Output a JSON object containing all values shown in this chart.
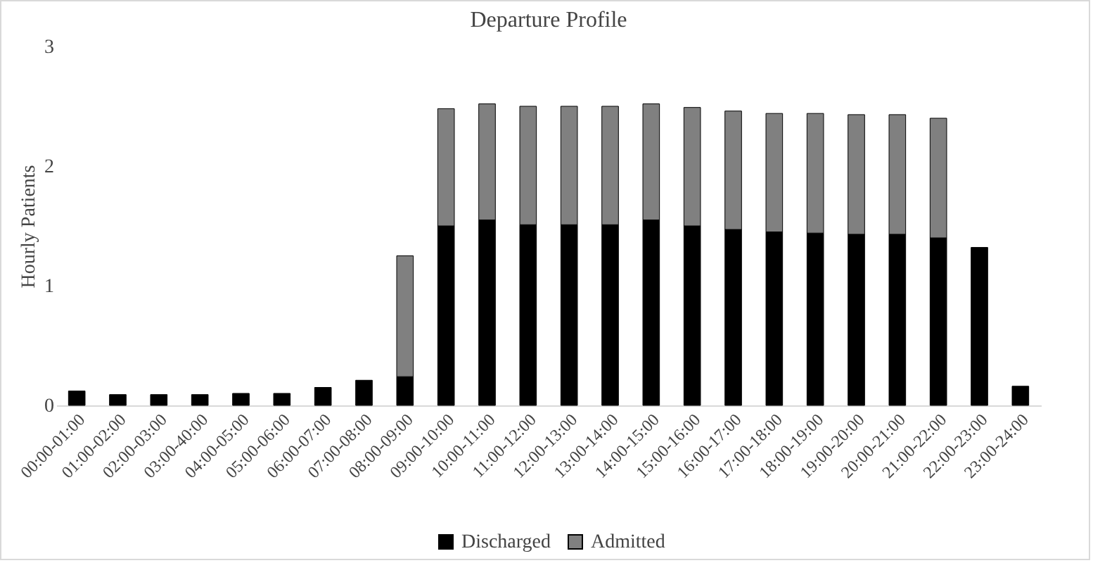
{
  "chart_data": {
    "type": "bar",
    "title": "Departure Profile",
    "ylabel": "Hourly Patients",
    "categories": [
      "00:00-01:00",
      "01:00-02:00",
      "02:00-03:00",
      "03:00-40:00",
      "04:00-05:00",
      "05:00-06:00",
      "06:00-07:00",
      "07:00-08:00",
      "08:00-09:00",
      "09:00-10:00",
      "10:00-11:00",
      "11:00-12:00",
      "12:00-13:00",
      "13:00-14:00",
      "14:00-15:00",
      "15:00-16:00",
      "16:00-17:00",
      "17:00-18:00",
      "18:00-19:00",
      "19:00-20:00",
      "20:00-21:00",
      "21:00-22:00",
      "22:00-23:00",
      "23:00-24:00"
    ],
    "series": [
      {
        "name": "Discharged",
        "color": "#000000",
        "values": [
          0.12,
          0.09,
          0.09,
          0.09,
          0.1,
          0.1,
          0.15,
          0.21,
          0.24,
          1.5,
          1.55,
          1.51,
          1.51,
          1.51,
          1.55,
          1.5,
          1.47,
          1.45,
          1.44,
          1.43,
          1.43,
          1.4,
          1.32,
          0.16
        ]
      },
      {
        "name": "Admitted",
        "color": "#808080",
        "values": [
          null,
          null,
          null,
          null,
          null,
          null,
          null,
          null,
          1.01,
          0.98,
          0.97,
          0.99,
          0.99,
          0.99,
          0.97,
          0.99,
          0.99,
          0.99,
          1.0,
          1.0,
          1.0,
          1.0,
          null,
          null
        ]
      }
    ],
    "stacked": true,
    "ylim": [
      0,
      3
    ],
    "yticks": [
      0,
      1,
      2,
      3
    ],
    "grid": false,
    "legend": "bottom"
  }
}
